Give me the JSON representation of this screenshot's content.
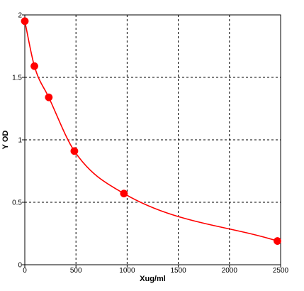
{
  "chart_data": {
    "type": "scatter",
    "title": "",
    "xlabel": "Xug/ml",
    "ylabel": "Y OD",
    "xlim": [
      0,
      2500
    ],
    "ylim": [
      0,
      2
    ],
    "x_ticks": [
      "0",
      "500",
      "1000",
      "1500",
      "2000",
      "2500"
    ],
    "y_ticks": [
      "0",
      "0.5",
      "1",
      "1.5",
      "2"
    ],
    "grid": "dashed",
    "legend": "none",
    "series": [
      {
        "x": [
          0,
          93.75,
          234.375,
          484.375,
          968.75,
          2468.75
        ],
        "y": [
          1.95,
          1.59,
          1.34,
          0.91,
          0.57,
          0.19
        ],
        "color": "#ff0000",
        "marker": "circle",
        "fit_curve": true
      }
    ]
  }
}
